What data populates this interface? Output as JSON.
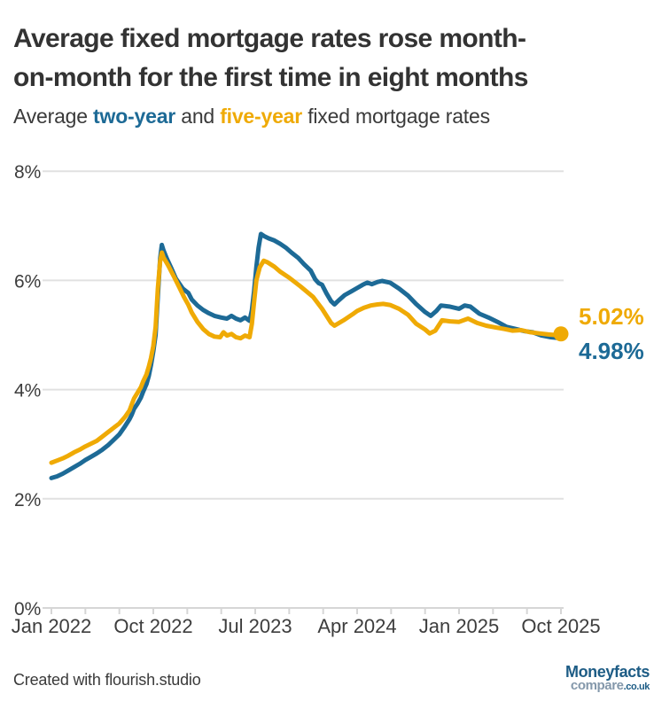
{
  "header": {
    "title_line1": "Average fixed mortgage rates rose month-",
    "title_line2": "on-month for the first time in eight months",
    "subtitle_prefix": "Average ",
    "subtitle_series1": "two-year",
    "subtitle_mid": " and ",
    "subtitle_series2": "five-year",
    "subtitle_suffix": " fixed mortgage rates"
  },
  "footer": {
    "credit": "Created with flourish.studio",
    "logo_line1": "Moneyfacts",
    "logo_line2_main": "compare",
    "logo_line2_suffix": ".co.uk"
  },
  "colors": {
    "blue": "#1d6a96",
    "gold": "#efaa05",
    "title_text": "#333333",
    "axis_text": "#3d3d3d",
    "gridline": "#e1e1e1",
    "axis_line": "#d6d6d6",
    "logo_blue": "#1d5c85",
    "logo_gray": "#8498ab"
  },
  "chart_data": {
    "type": "line",
    "title": "Average fixed mortgage rates rose month-on-month for the first time in eight months",
    "subtitle": "Average two-year and five-year fixed mortgage rates",
    "x_unit": "months since Jan 2022",
    "x_axis": {
      "range_months": [
        0,
        45
      ],
      "minor_tick_every_months": 3,
      "ticks": [
        {
          "month": 0,
          "label": "Jan 2022"
        },
        {
          "month": 9,
          "label": "Oct 2022"
        },
        {
          "month": 18,
          "label": "Jul 2023"
        },
        {
          "month": 27,
          "label": "Apr 2024"
        },
        {
          "month": 36,
          "label": "Jan 2025"
        },
        {
          "month": 45,
          "label": "Oct 2025"
        }
      ]
    },
    "y_axis": {
      "range": [
        0,
        8
      ],
      "tick_values": [
        0,
        2,
        4,
        6,
        8
      ],
      "tick_labels": [
        "0%",
        "2%",
        "4%",
        "6%",
        "8%"
      ],
      "grid": true
    },
    "legend_position": "inline-subtitle",
    "series": [
      {
        "name": "two-year",
        "color": "#1d6a96",
        "end_label": "4.98%",
        "end_value": 4.98,
        "end_dot": false,
        "points": [
          [
            0,
            2.38
          ],
          [
            0.5,
            2.41
          ],
          [
            1,
            2.46
          ],
          [
            1.5,
            2.52
          ],
          [
            2,
            2.58
          ],
          [
            2.5,
            2.64
          ],
          [
            3,
            2.71
          ],
          [
            3.5,
            2.77
          ],
          [
            4,
            2.83
          ],
          [
            4.5,
            2.9
          ],
          [
            5,
            2.98
          ],
          [
            5.5,
            3.08
          ],
          [
            6,
            3.18
          ],
          [
            6.5,
            3.33
          ],
          [
            6.9,
            3.46
          ],
          [
            7.1,
            3.54
          ],
          [
            7.3,
            3.65
          ],
          [
            7.6,
            3.74
          ],
          [
            7.9,
            3.85
          ],
          [
            8.1,
            3.96
          ],
          [
            8.4,
            4.1
          ],
          [
            8.6,
            4.25
          ],
          [
            8.8,
            4.45
          ],
          [
            9.0,
            4.7
          ],
          [
            9.2,
            5.0
          ],
          [
            9.4,
            5.7
          ],
          [
            9.6,
            6.4
          ],
          [
            9.75,
            6.65
          ],
          [
            9.9,
            6.55
          ],
          [
            10.2,
            6.4
          ],
          [
            10.6,
            6.22
          ],
          [
            11,
            6.03
          ],
          [
            11.6,
            5.85
          ],
          [
            12.1,
            5.77
          ],
          [
            12.4,
            5.65
          ],
          [
            12.9,
            5.54
          ],
          [
            13.4,
            5.46
          ],
          [
            13.9,
            5.4
          ],
          [
            14.4,
            5.35
          ],
          [
            15,
            5.32
          ],
          [
            15.5,
            5.3
          ],
          [
            15.9,
            5.35
          ],
          [
            16.3,
            5.3
          ],
          [
            16.7,
            5.27
          ],
          [
            17.1,
            5.32
          ],
          [
            17.5,
            5.26
          ],
          [
            17.7,
            5.45
          ],
          [
            17.9,
            5.8
          ],
          [
            18.1,
            6.25
          ],
          [
            18.3,
            6.6
          ],
          [
            18.5,
            6.85
          ],
          [
            18.8,
            6.81
          ],
          [
            19.2,
            6.77
          ],
          [
            19.7,
            6.73
          ],
          [
            20.2,
            6.67
          ],
          [
            20.7,
            6.6
          ],
          [
            21.2,
            6.51
          ],
          [
            21.8,
            6.41
          ],
          [
            22.3,
            6.3
          ],
          [
            22.9,
            6.18
          ],
          [
            23.3,
            6.02
          ],
          [
            23.6,
            5.95
          ],
          [
            23.9,
            5.92
          ],
          [
            24.3,
            5.76
          ],
          [
            24.7,
            5.62
          ],
          [
            25,
            5.56
          ],
          [
            25.4,
            5.64
          ],
          [
            25.9,
            5.73
          ],
          [
            26.5,
            5.8
          ],
          [
            27,
            5.86
          ],
          [
            27.5,
            5.92
          ],
          [
            27.9,
            5.96
          ],
          [
            28.3,
            5.93
          ],
          [
            28.8,
            5.97
          ],
          [
            29.2,
            5.99
          ],
          [
            29.9,
            5.96
          ],
          [
            30.7,
            5.85
          ],
          [
            31.5,
            5.72
          ],
          [
            32.2,
            5.57
          ],
          [
            33,
            5.42
          ],
          [
            33.5,
            5.35
          ],
          [
            34,
            5.44
          ],
          [
            34.4,
            5.54
          ],
          [
            35.2,
            5.52
          ],
          [
            36,
            5.48
          ],
          [
            36.5,
            5.54
          ],
          [
            37,
            5.52
          ],
          [
            37.8,
            5.39
          ],
          [
            38.6,
            5.32
          ],
          [
            39.4,
            5.24
          ],
          [
            40.2,
            5.15
          ],
          [
            41,
            5.11
          ],
          [
            41.8,
            5.07
          ],
          [
            42.5,
            5.05
          ],
          [
            43.3,
            4.99
          ],
          [
            44.1,
            4.96
          ],
          [
            44.6,
            4.95
          ],
          [
            45,
            4.98
          ]
        ]
      },
      {
        "name": "five-year",
        "color": "#efaa05",
        "end_label": "5.02%",
        "end_value": 5.02,
        "end_dot": true,
        "points": [
          [
            0,
            2.66
          ],
          [
            0.5,
            2.7
          ],
          [
            1,
            2.74
          ],
          [
            1.5,
            2.79
          ],
          [
            2,
            2.85
          ],
          [
            2.5,
            2.9
          ],
          [
            3,
            2.96
          ],
          [
            3.5,
            3.01
          ],
          [
            4,
            3.06
          ],
          [
            4.5,
            3.14
          ],
          [
            5,
            3.22
          ],
          [
            5.5,
            3.3
          ],
          [
            6,
            3.38
          ],
          [
            6.5,
            3.5
          ],
          [
            6.9,
            3.62
          ],
          [
            7.1,
            3.73
          ],
          [
            7.3,
            3.84
          ],
          [
            7.6,
            3.94
          ],
          [
            7.9,
            4.04
          ],
          [
            8.1,
            4.15
          ],
          [
            8.4,
            4.28
          ],
          [
            8.6,
            4.42
          ],
          [
            8.8,
            4.58
          ],
          [
            9.0,
            4.8
          ],
          [
            9.2,
            5.15
          ],
          [
            9.4,
            5.85
          ],
          [
            9.6,
            6.35
          ],
          [
            9.75,
            6.51
          ],
          [
            9.9,
            6.42
          ],
          [
            10.3,
            6.28
          ],
          [
            10.8,
            6.08
          ],
          [
            11.3,
            5.87
          ],
          [
            11.7,
            5.7
          ],
          [
            12.1,
            5.55
          ],
          [
            12.4,
            5.41
          ],
          [
            12.9,
            5.24
          ],
          [
            13.4,
            5.11
          ],
          [
            13.9,
            5.02
          ],
          [
            14.4,
            4.97
          ],
          [
            14.9,
            4.96
          ],
          [
            15.2,
            5.05
          ],
          [
            15.5,
            4.99
          ],
          [
            15.9,
            5.02
          ],
          [
            16.3,
            4.96
          ],
          [
            16.7,
            4.94
          ],
          [
            17.1,
            4.99
          ],
          [
            17.5,
            4.96
          ],
          [
            17.7,
            5.2
          ],
          [
            17.9,
            5.6
          ],
          [
            18.1,
            6.0
          ],
          [
            18.4,
            6.24
          ],
          [
            18.75,
            6.36
          ],
          [
            19.1,
            6.33
          ],
          [
            19.7,
            6.25
          ],
          [
            20.2,
            6.16
          ],
          [
            21,
            6.05
          ],
          [
            22,
            5.89
          ],
          [
            23.1,
            5.7
          ],
          [
            23.9,
            5.48
          ],
          [
            24.7,
            5.22
          ],
          [
            25,
            5.17
          ],
          [
            25.8,
            5.27
          ],
          [
            26.6,
            5.38
          ],
          [
            27,
            5.44
          ],
          [
            27.6,
            5.5
          ],
          [
            28.2,
            5.54
          ],
          [
            28.8,
            5.56
          ],
          [
            29.3,
            5.57
          ],
          [
            29.9,
            5.55
          ],
          [
            30.7,
            5.48
          ],
          [
            31.5,
            5.37
          ],
          [
            32.2,
            5.21
          ],
          [
            33,
            5.1
          ],
          [
            33.4,
            5.03
          ],
          [
            33.9,
            5.08
          ],
          [
            34.5,
            5.27
          ],
          [
            35.2,
            5.25
          ],
          [
            36,
            5.24
          ],
          [
            36.8,
            5.3
          ],
          [
            37.6,
            5.22
          ],
          [
            38.4,
            5.17
          ],
          [
            39.2,
            5.14
          ],
          [
            40,
            5.11
          ],
          [
            40.7,
            5.08
          ],
          [
            41.5,
            5.09
          ],
          [
            42.3,
            5.05
          ],
          [
            43.1,
            5.03
          ],
          [
            43.9,
            5.01
          ],
          [
            44.5,
            5.0
          ],
          [
            45,
            5.02
          ]
        ]
      }
    ]
  }
}
